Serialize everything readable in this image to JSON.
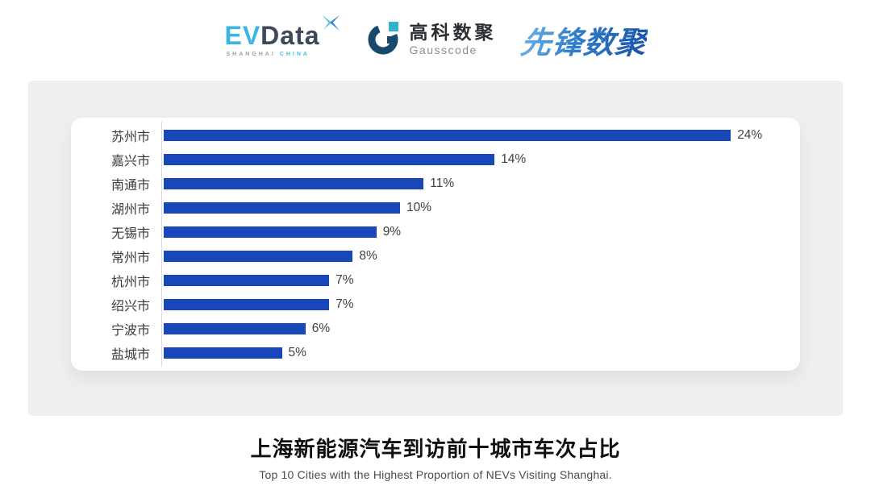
{
  "header": {
    "evdata": {
      "ev": "EV",
      "data": "Data",
      "sub_left": "SHANGHAI",
      "sub_right": "CHINA"
    },
    "gausscode": {
      "cn": "高科数聚",
      "en": "Gausscode"
    },
    "xianfeng": {
      "text": "先锋数聚"
    }
  },
  "chart_data": {
    "type": "bar",
    "orientation": "horizontal",
    "categories": [
      "苏州市",
      "嘉兴市",
      "南通市",
      "湖州市",
      "无锡市",
      "常州市",
      "杭州市",
      "绍兴市",
      "宁波市",
      "盐城市"
    ],
    "values": [
      24,
      14,
      11,
      10,
      9,
      8,
      7,
      7,
      6,
      5
    ],
    "value_labels": [
      "24%",
      "14%",
      "11%",
      "10%",
      "9%",
      "8%",
      "7%",
      "7%",
      "6%",
      "5%"
    ],
    "unit": "%",
    "xlim": [
      0,
      24
    ],
    "grid": false,
    "bar_color": "#1747B8",
    "title": "上海新能源汽车到访前十城市车次占比",
    "subtitle": "Top 10 Cities with the Highest Proportion of  NEVs Visiting Shanghai."
  },
  "caption": {
    "title": "上海新能源汽车到访前十城市车次占比",
    "subtitle": "Top 10 Cities with the Highest Proportion of  NEVs Visiting Shanghai."
  },
  "colors": {
    "bar_blue": "#1747B8",
    "panel_gray": "#efefef",
    "evdata_light_blue": "#3ab5e6",
    "evdata_dark": "#3d4858",
    "gausscode_navy": "#17496f",
    "gausscode_teal": "#2fb3cf",
    "xianfeng_blue": "#2f7cc8"
  }
}
